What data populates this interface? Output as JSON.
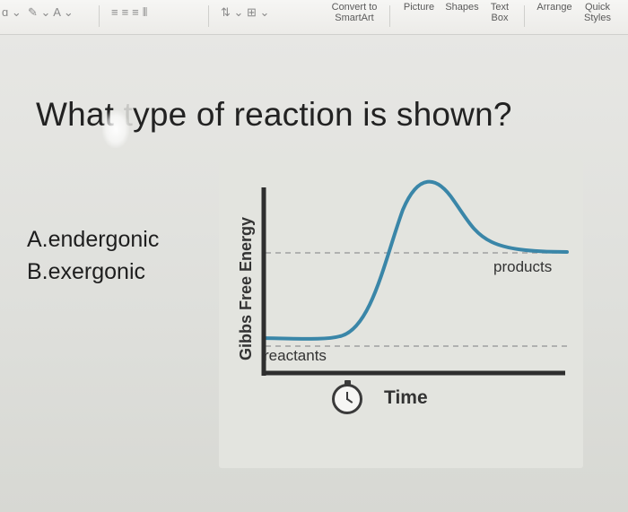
{
  "toolbar": {
    "convert_to_smartart": "Convert to\nSmartArt",
    "picture": "Picture",
    "shapes": "Shapes",
    "text_box": "Text\nBox",
    "arrange": "Arrange",
    "quick_styles": "Quick\nStyles"
  },
  "slide": {
    "question_prefix": "What ",
    "question_suffix": "ype of reaction is shown?",
    "options": [
      "A.endergonic",
      "B.exergonic"
    ]
  },
  "diagram": {
    "y_axis_label": "Gibbs Free Energy",
    "x_axis_label": "Time",
    "reactants_label": "reactants",
    "products_label": "products",
    "curve_color": "#3a86a8",
    "axis_color": "#2e2e2e",
    "dash_color": "#a0a0a0"
  }
}
